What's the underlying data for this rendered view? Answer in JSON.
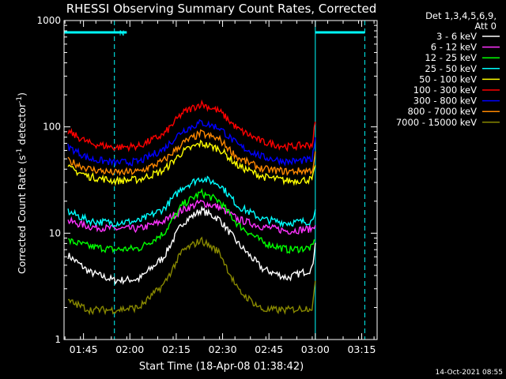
{
  "chart_data": {
    "type": "line",
    "title": "RHESSI Observing Summary Count Rates, Corrected",
    "xlabel": "Start Time (18-Apr-08 01:38:42)",
    "ylabel": "Corrected Count Rate (s⁻¹ detector⁻¹)",
    "yscale": "log",
    "ylim": [
      1,
      1000
    ],
    "xlim": [
      "01:38:42",
      "03:20:00"
    ],
    "xticks": [
      "01:45",
      "02:00",
      "02:15",
      "02:30",
      "02:45",
      "03:00",
      "03:15"
    ],
    "yticks": [
      "1",
      "10",
      "100",
      "1000"
    ],
    "grid": false,
    "legend_position": "top-right",
    "legend_header": [
      "Det 1,3,4,5,6,9,",
      "Att 0"
    ],
    "timestamp": "14-Oct-2021 08:55",
    "flag_label": "N",
    "x": [
      "01:40",
      "01:47",
      "01:55",
      "02:03",
      "02:11",
      "02:17",
      "02:23",
      "02:29",
      "02:35",
      "02:43",
      "02:51",
      "02:59",
      "03:00"
    ],
    "series": [
      {
        "name": "3 - 6 keV",
        "color": "#ffffff",
        "values": [
          6.2,
          4.3,
          3.6,
          3.7,
          6.0,
          12.5,
          16.5,
          13.5,
          8.0,
          4.6,
          3.8,
          4.6,
          8.5
        ]
      },
      {
        "name": "6 - 12 keV",
        "color": "#ff33ff",
        "values": [
          13,
          11.5,
          11,
          11,
          13,
          16.5,
          19.5,
          17.5,
          13.5,
          11.5,
          10.5,
          11,
          12.5
        ]
      },
      {
        "name": "12 - 25 keV",
        "color": "#00ff00",
        "values": [
          8.5,
          7.5,
          7.0,
          7.2,
          10,
          18.5,
          24,
          20,
          12,
          8.2,
          7.0,
          7.3,
          9.0
        ]
      },
      {
        "name": "25 - 50 keV",
        "color": "#00ffff",
        "values": [
          16,
          13,
          12.5,
          13,
          17,
          27,
          33,
          29,
          18,
          13.5,
          12.5,
          13,
          18
        ]
      },
      {
        "name": "50 - 100 keV",
        "color": "#ffff00",
        "values": [
          41,
          34,
          31,
          32,
          39,
          58,
          70,
          62,
          43,
          34,
          31,
          32,
          41
        ]
      },
      {
        "name": "100 - 300 keV",
        "color": "#ff0000",
        "values": [
          90,
          70,
          64,
          66,
          85,
          135,
          165,
          140,
          95,
          72,
          65,
          68,
          110
        ]
      },
      {
        "name": "300 - 800 keV",
        "color": "#0000ff",
        "values": [
          65,
          50,
          46,
          47,
          62,
          92,
          110,
          98,
          67,
          52,
          47,
          49,
          78
        ]
      },
      {
        "name": "800 - 7000 keV",
        "color": "#ff8800",
        "values": [
          48,
          40,
          37,
          38,
          48,
          70,
          87,
          76,
          51,
          40,
          38,
          39,
          55
        ]
      },
      {
        "name": "7000 - 15000 keV",
        "color": "#888800",
        "values": [
          2.3,
          1.9,
          1.9,
          2.0,
          3.3,
          6.8,
          8.6,
          6.6,
          2.9,
          1.9,
          1.9,
          2.0,
          3.3
        ]
      }
    ]
  }
}
